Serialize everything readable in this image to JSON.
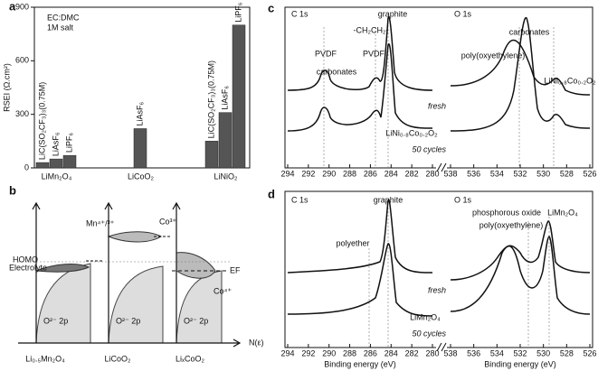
{
  "chart_data": {
    "type": "bar",
    "panel_label": "a",
    "ylabel": "RSEI (Ω.cm²)",
    "annotations": [
      "EC:DMC",
      "1M salt"
    ],
    "ylim": [
      0,
      900
    ],
    "yticks": [
      0,
      300,
      600,
      900
    ],
    "color": "#555555",
    "groups": [
      {
        "name": "LiMn₂O₄",
        "bars": [
          {
            "label": "LiC(SO₂CF₃)₃(0.75M)",
            "value": 30
          },
          {
            "label": "LiAsF₆",
            "value": 50
          },
          {
            "label": "LiPF₆",
            "value": 70
          }
        ]
      },
      {
        "name": "LiCoO₂",
        "bars": [
          {
            "label": "LiAsF₆",
            "value": 220
          }
        ]
      },
      {
        "name": "LiNiO₂",
        "bars": [
          {
            "label": "LiC(SO₂CF₃)₃(0.75M)",
            "value": 150
          },
          {
            "label": "LiAsF₆",
            "value": 310
          },
          {
            "label": "LiPF₆",
            "value": 800
          }
        ]
      }
    ]
  },
  "panel_b": {
    "label": "b",
    "mn": "Mn⁴⁺/³⁺",
    "co3": "Co³⁺",
    "co4": "Co⁴⁺",
    "ef": "EF",
    "homo": "HOMO",
    "electrolyte": "Electrolyte",
    "o2p": [
      "O²⁻ 2p",
      "O²⁻ 2p",
      "O²⁻ 2p"
    ],
    "n": "N(ε)",
    "materials": [
      "Li₀.₅Mn₂O₄",
      "LiCoO₂",
      "LiₓCoO₂"
    ]
  },
  "panel_c": {
    "label": "c",
    "sections": [
      {
        "title": "C 1s",
        "xlim": [
          294,
          280
        ],
        "xticks": [
          294,
          292,
          290,
          288,
          286,
          284,
          282,
          280
        ]
      },
      {
        "title": "O 1s",
        "xlim": [
          538,
          526
        ],
        "xticks": [
          538,
          536,
          534,
          532,
          530,
          528,
          526
        ]
      }
    ],
    "annotations": [
      "PVDF",
      "carbonates",
      "-CH₂CH₂-",
      "PVDF",
      "graphite",
      "carbonates",
      "poly(oxyethylene)",
      "LiNi₀.₈Co₀.₂O₂"
    ],
    "fresh": "fresh",
    "sample": "LiNi₀.₈Co₀.₂O₂",
    "cycled": "50 cycles"
  },
  "panel_d": {
    "label": "d",
    "sections": [
      {
        "title": "C 1s",
        "xlim": [
          294,
          280
        ],
        "xticks": [
          294,
          292,
          290,
          288,
          286,
          284,
          282,
          280
        ],
        "xlabel": "Binding energy (eV)"
      },
      {
        "title": "O 1s",
        "xlim": [
          538,
          526
        ],
        "xticks": [
          538,
          536,
          534,
          532,
          530,
          528,
          526
        ],
        "xlabel": "Binding energy (eV)"
      }
    ],
    "annotations": [
      "graphite",
      "phosphorous oxide",
      "LiMn₂O₄",
      "poly(oxyethylene)",
      "polyether"
    ],
    "fresh": "fresh",
    "sample": "LiMn₂O₄",
    "cycled": "50 cycles"
  }
}
